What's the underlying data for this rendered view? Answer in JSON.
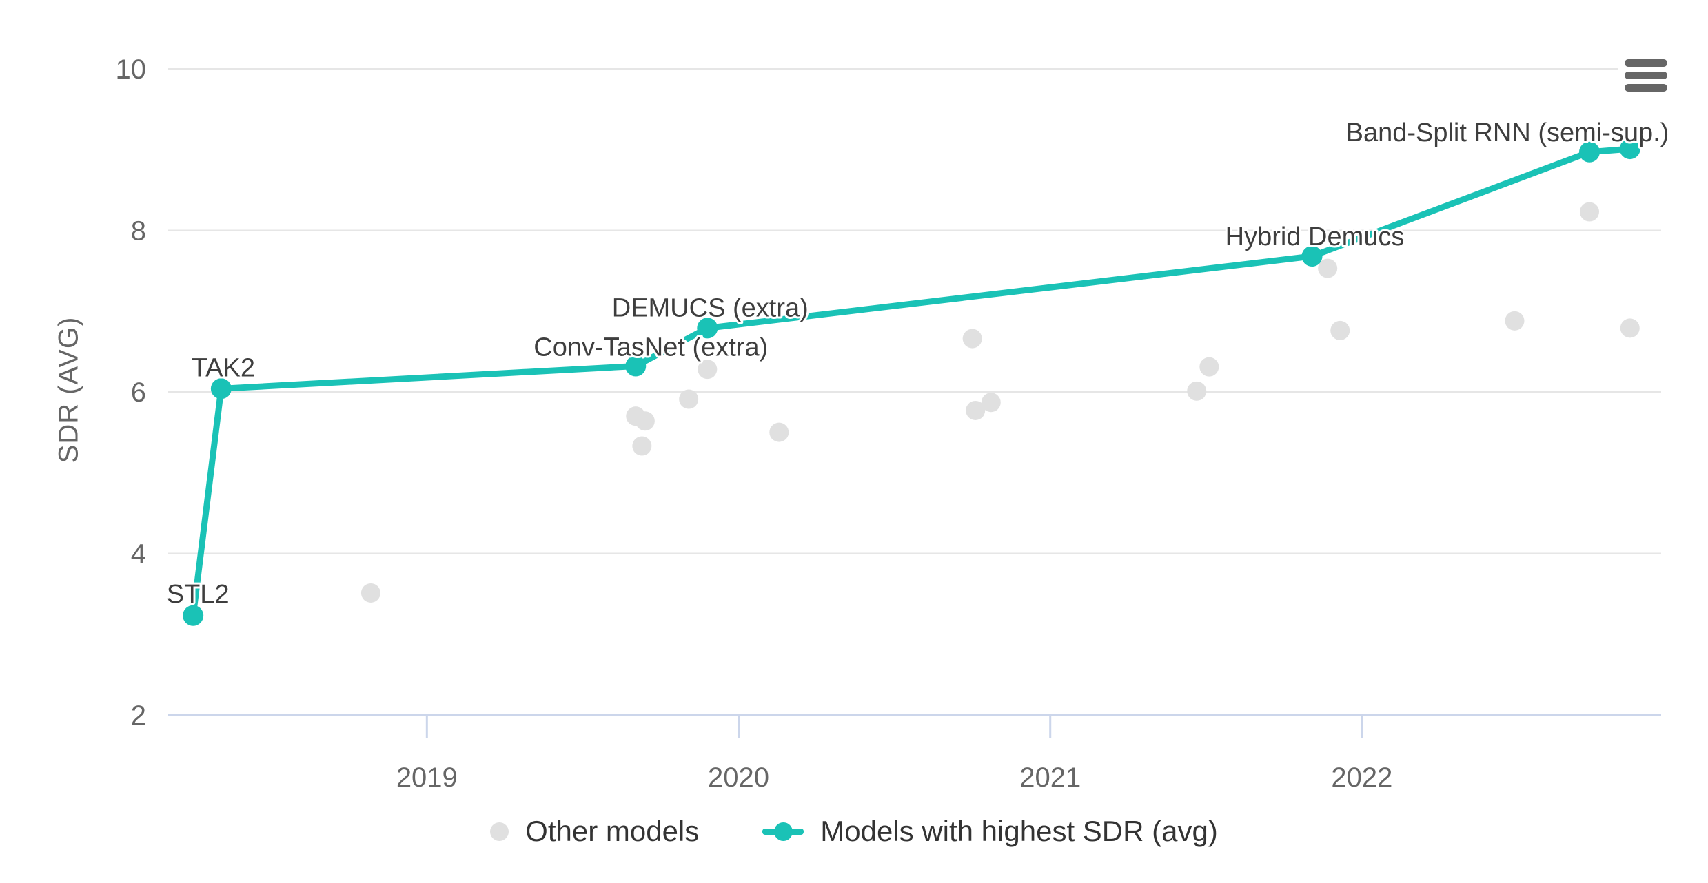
{
  "chart_data": {
    "type": "scatter",
    "title": "",
    "xlabel": "",
    "ylabel": "SDR (AVG)",
    "xlim": [
      2018.17,
      2022.96
    ],
    "ylim": [
      2,
      10
    ],
    "grid": "horizontal-only",
    "legend_position": "bottom-center",
    "xticks": [
      2019,
      2020,
      2021,
      2022
    ],
    "xtick_labels": [
      "2019",
      "2020",
      "2021",
      "2022"
    ],
    "yticks": [
      2,
      4,
      6,
      8,
      10
    ],
    "ytick_labels": [
      "2",
      "4",
      "6",
      "8",
      "10"
    ],
    "series": [
      {
        "name": "Other models",
        "type": "scatter",
        "color": "#e0e0e0",
        "marker_radius": 14,
        "points": [
          {
            "x": 2018.82,
            "y": 3.51
          },
          {
            "x": 2019.67,
            "y": 5.7
          },
          {
            "x": 2019.7,
            "y": 5.64
          },
          {
            "x": 2019.69,
            "y": 5.33
          },
          {
            "x": 2019.84,
            "y": 5.91
          },
          {
            "x": 2019.9,
            "y": 6.28
          },
          {
            "x": 2020.13,
            "y": 5.5
          },
          {
            "x": 2020.75,
            "y": 6.66
          },
          {
            "x": 2020.76,
            "y": 5.77
          },
          {
            "x": 2020.81,
            "y": 5.87
          },
          {
            "x": 2021.47,
            "y": 6.01
          },
          {
            "x": 2021.51,
            "y": 6.31
          },
          {
            "x": 2021.89,
            "y": 7.53
          },
          {
            "x": 2021.93,
            "y": 6.76
          },
          {
            "x": 2022.49,
            "y": 6.88
          },
          {
            "x": 2022.73,
            "y": 8.23
          },
          {
            "x": 2022.86,
            "y": 6.79
          }
        ]
      },
      {
        "name": "Models with highest SDR (avg)",
        "type": "line-scatter",
        "color": "#1ac2b6",
        "marker_radius": 15,
        "line_width": 9,
        "points": [
          {
            "x": 2018.25,
            "y": 3.23,
            "label": "STL2",
            "ldx": 7,
            "ldy": -19
          },
          {
            "x": 2018.34,
            "y": 6.04,
            "label": "TAK2",
            "ldx": 3,
            "ldy": -18
          },
          {
            "x": 2019.67,
            "y": 6.32,
            "label": "Conv-TasNet (extra)",
            "ldx": 22,
            "ldy": -15
          },
          {
            "x": 2019.9,
            "y": 6.79,
            "label": "DEMUCS (extra)",
            "ldx": 4,
            "ldy": -17
          },
          {
            "x": 2021.84,
            "y": 7.68,
            "label": "Hybrid Demucs",
            "ldx": 4,
            "ldy": -16
          },
          {
            "x": 2022.73,
            "y": 8.97,
            "label": "Band-Split RNN (semi-sup.)",
            "ldx": -119,
            "ldy": -16
          },
          {
            "x": 2022.86,
            "y": 9.01,
            "label": ""
          }
        ]
      }
    ]
  },
  "legend": {
    "items": [
      {
        "label": "Other models",
        "marker": "dot",
        "color": "#e0e0e0"
      },
      {
        "label": "Models with highest SDR (avg)",
        "marker": "line-dot",
        "color": "#1ac2b6"
      }
    ]
  },
  "menu_button": {
    "icon": "hamburger-icon",
    "tooltip": "Chart context menu"
  },
  "colors": {
    "background": "#ffffff",
    "gridline": "#e6e6e6",
    "axis_line": "#ccd6eb",
    "tick_label": "#666666",
    "data_label": "#3e3e3e",
    "legend_text": "#333333",
    "highlight": "#1ac2b6",
    "other_models": "#e0e0e0",
    "menu_icon": "#666666"
  }
}
